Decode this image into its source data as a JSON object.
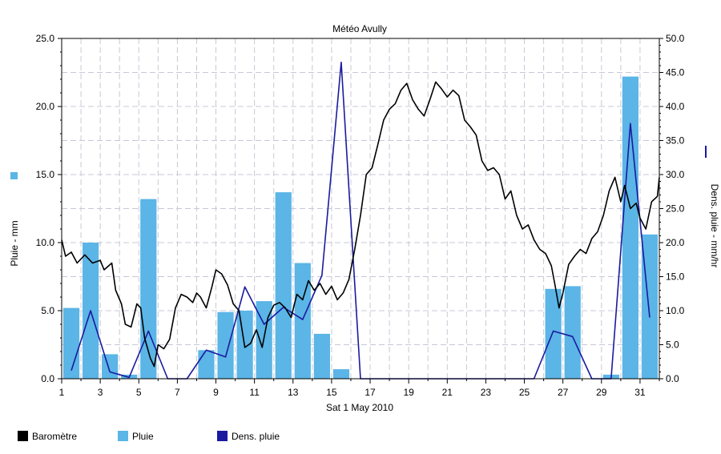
{
  "chart_data": {
    "type": "bar+line",
    "title": "Météo Avully",
    "xlabel": "Sat 1 May 2010",
    "y_left_label": "Pluie - mm",
    "y_right_label": "Dens. pluie - mm/hr",
    "xlim": [
      1,
      32
    ],
    "ylim_left": [
      0,
      25
    ],
    "ylim_right": [
      0,
      50
    ],
    "x_ticks": [
      "1",
      "3",
      "5",
      "7",
      "9",
      "11",
      "13",
      "15",
      "17",
      "19",
      "21",
      "23",
      "25",
      "27",
      "29",
      "31"
    ],
    "y_left_ticks": [
      "0.0",
      "5.0",
      "10.0",
      "15.0",
      "20.0",
      "25.0"
    ],
    "y_right_ticks": [
      "0.0",
      "5.0",
      "10.0",
      "15.0",
      "20.0",
      "25.0",
      "30.0",
      "35.0",
      "40.0",
      "45.0",
      "50.0"
    ],
    "grid": true,
    "legend": [
      "Baromètre",
      "Pluie",
      "Dens. pluie"
    ],
    "colors": {
      "barometre": "#000000",
      "pluie": "#5bb5e6",
      "dens": "#1a1aa0"
    },
    "series": [
      {
        "name": "Pluie",
        "type": "bar",
        "axis": "left",
        "unit": "mm",
        "points": [
          [
            1.5,
            5.2
          ],
          [
            2.5,
            10.0
          ],
          [
            3.5,
            1.8
          ],
          [
            4.5,
            0.3
          ],
          [
            5.5,
            13.2
          ],
          [
            8.5,
            2.1
          ],
          [
            9.5,
            4.9
          ],
          [
            10.5,
            5.0
          ],
          [
            11.5,
            5.7
          ],
          [
            12.5,
            13.7
          ],
          [
            13.5,
            8.5
          ],
          [
            14.5,
            3.3
          ],
          [
            15.5,
            0.7
          ],
          [
            26.5,
            6.6
          ],
          [
            27.5,
            6.8
          ],
          [
            29.5,
            0.3
          ],
          [
            30.5,
            22.2
          ],
          [
            31.5,
            10.6
          ]
        ]
      },
      {
        "name": "Dens. pluie",
        "type": "line",
        "axis": "right",
        "unit": "mm/hr",
        "points": [
          [
            1.5,
            1.2
          ],
          [
            2.5,
            10.0
          ],
          [
            3.5,
            1.0
          ],
          [
            4.5,
            0.2
          ],
          [
            5.5,
            7.0
          ],
          [
            6.5,
            0.0
          ],
          [
            7.5,
            0.0
          ],
          [
            8.5,
            4.2
          ],
          [
            9.5,
            3.2
          ],
          [
            10.5,
            13.5
          ],
          [
            11.5,
            8.0
          ],
          [
            12.5,
            10.5
          ],
          [
            13.5,
            8.7
          ],
          [
            14.5,
            15.2
          ],
          [
            15.5,
            46.5
          ],
          [
            16.5,
            0.0
          ],
          [
            25.5,
            0.0
          ],
          [
            26.5,
            7.0
          ],
          [
            27.5,
            6.2
          ],
          [
            28.5,
            0.0
          ],
          [
            29.5,
            0.0
          ],
          [
            30.5,
            37.5
          ],
          [
            31.5,
            9.0
          ]
        ]
      },
      {
        "name": "Baromètre",
        "type": "line",
        "axis": "left",
        "points": [
          [
            1.0,
            10.2
          ],
          [
            1.2,
            9.0
          ],
          [
            1.5,
            9.3
          ],
          [
            1.8,
            8.5
          ],
          [
            2.2,
            9.1
          ],
          [
            2.6,
            8.5
          ],
          [
            3.0,
            8.7
          ],
          [
            3.2,
            8.0
          ],
          [
            3.6,
            8.5
          ],
          [
            3.8,
            6.5
          ],
          [
            4.1,
            5.5
          ],
          [
            4.3,
            4.0
          ],
          [
            4.6,
            3.8
          ],
          [
            4.9,
            5.5
          ],
          [
            5.1,
            5.2
          ],
          [
            5.3,
            3.0
          ],
          [
            5.6,
            1.5
          ],
          [
            5.8,
            0.9
          ],
          [
            6.0,
            2.5
          ],
          [
            6.3,
            2.2
          ],
          [
            6.6,
            2.9
          ],
          [
            6.9,
            5.2
          ],
          [
            7.2,
            6.2
          ],
          [
            7.5,
            6.0
          ],
          [
            7.8,
            5.6
          ],
          [
            8.0,
            6.3
          ],
          [
            8.2,
            6.0
          ],
          [
            8.5,
            5.2
          ],
          [
            8.8,
            6.8
          ],
          [
            9.0,
            8.0
          ],
          [
            9.3,
            7.7
          ],
          [
            9.6,
            6.9
          ],
          [
            9.9,
            5.5
          ],
          [
            10.2,
            5.0
          ],
          [
            10.5,
            2.3
          ],
          [
            10.8,
            2.6
          ],
          [
            11.1,
            3.6
          ],
          [
            11.4,
            2.3
          ],
          [
            11.7,
            4.5
          ],
          [
            12.0,
            5.4
          ],
          [
            12.3,
            5.6
          ],
          [
            12.6,
            5.2
          ],
          [
            12.9,
            4.5
          ],
          [
            13.2,
            6.2
          ],
          [
            13.5,
            5.8
          ],
          [
            13.8,
            7.2
          ],
          [
            14.1,
            6.5
          ],
          [
            14.4,
            7.0
          ],
          [
            14.7,
            6.2
          ],
          [
            15.0,
            6.8
          ],
          [
            15.3,
            5.8
          ],
          [
            15.6,
            6.3
          ],
          [
            15.9,
            7.3
          ],
          [
            16.2,
            9.5
          ],
          [
            16.5,
            12.0
          ],
          [
            16.8,
            15.0
          ],
          [
            17.1,
            15.5
          ],
          [
            17.4,
            17.2
          ],
          [
            17.7,
            19.0
          ],
          [
            18.0,
            19.8
          ],
          [
            18.3,
            20.2
          ],
          [
            18.6,
            21.2
          ],
          [
            18.9,
            21.7
          ],
          [
            19.2,
            20.5
          ],
          [
            19.5,
            19.8
          ],
          [
            19.8,
            19.3
          ],
          [
            20.1,
            20.5
          ],
          [
            20.4,
            21.8
          ],
          [
            20.7,
            21.3
          ],
          [
            21.0,
            20.7
          ],
          [
            21.3,
            21.2
          ],
          [
            21.6,
            20.8
          ],
          [
            21.9,
            19.0
          ],
          [
            22.2,
            18.5
          ],
          [
            22.5,
            17.9
          ],
          [
            22.8,
            16.0
          ],
          [
            23.1,
            15.3
          ],
          [
            23.4,
            15.5
          ],
          [
            23.7,
            15.0
          ],
          [
            24.0,
            13.2
          ],
          [
            24.3,
            13.8
          ],
          [
            24.6,
            12.0
          ],
          [
            24.9,
            11.0
          ],
          [
            25.2,
            11.3
          ],
          [
            25.5,
            10.2
          ],
          [
            25.8,
            9.5
          ],
          [
            26.1,
            9.2
          ],
          [
            26.4,
            8.3
          ],
          [
            26.6,
            6.8
          ],
          [
            26.8,
            5.2
          ],
          [
            27.0,
            6.3
          ],
          [
            27.3,
            8.4
          ],
          [
            27.6,
            9.0
          ],
          [
            27.9,
            9.5
          ],
          [
            28.2,
            9.2
          ],
          [
            28.5,
            10.3
          ],
          [
            28.8,
            10.8
          ],
          [
            29.1,
            12.0
          ],
          [
            29.4,
            13.8
          ],
          [
            29.7,
            14.8
          ],
          [
            30.0,
            13.0
          ],
          [
            30.2,
            14.2
          ],
          [
            30.5,
            12.5
          ],
          [
            30.8,
            12.9
          ],
          [
            31.0,
            11.8
          ],
          [
            31.3,
            11.0
          ],
          [
            31.6,
            13.0
          ],
          [
            31.9,
            13.4
          ],
          [
            32.0,
            14.8
          ]
        ]
      }
    ]
  }
}
